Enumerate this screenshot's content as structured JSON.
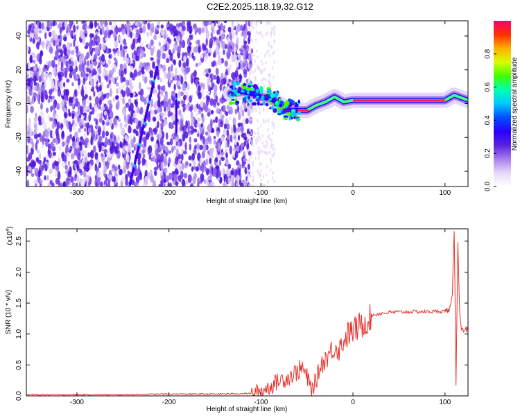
{
  "figure_title": "C2E2.2025.118.19.32.G12",
  "colors": {
    "snr_line": "#e8302a",
    "spectrogram_noise": "#6a2be6",
    "colormap": [
      "#ffffff",
      "#e6d8f8",
      "#a77cf0",
      "#5a1fe0",
      "#2a00ff",
      "#0050ff",
      "#00c8ff",
      "#00ffb0",
      "#40ff00",
      "#d8ff00",
      "#ffb000",
      "#ff3000",
      "#ff0070"
    ]
  },
  "chart_data": [
    {
      "type": "heatmap",
      "xlabel": "Height of straight line (km)",
      "ylabel": "Frequency (Hz)",
      "xlim": [
        -355,
        125
      ],
      "ylim": [
        -49,
        49
      ],
      "xticks": [
        -300,
        -200,
        -100,
        0,
        100
      ],
      "yticks": [
        -40,
        -20,
        0,
        20,
        40
      ],
      "colorbar": {
        "label": "Normalized spectral amplitude",
        "range": [
          0,
          1
        ],
        "ticks": [
          "0.0",
          "0.2",
          "0.4",
          "0.6",
          "0.8"
        ]
      },
      "signal_track": [
        {
          "x": -133,
          "y": 6
        },
        {
          "x": -120,
          "y": 7
        },
        {
          "x": -110,
          "y": 6
        },
        {
          "x": -100,
          "y": 4
        },
        {
          "x": -90,
          "y": 3
        },
        {
          "x": -80,
          "y": 0
        },
        {
          "x": -70,
          "y": -4
        },
        {
          "x": -60,
          "y": -4
        },
        {
          "x": -50,
          "y": -4
        },
        {
          "x": -40,
          "y": -1
        },
        {
          "x": -30,
          "y": 1
        },
        {
          "x": -20,
          "y": 4
        },
        {
          "x": -10,
          "y": 1
        },
        {
          "x": 0,
          "y": 2
        },
        {
          "x": 20,
          "y": 2
        },
        {
          "x": 50,
          "y": 2
        },
        {
          "x": 80,
          "y": 2
        },
        {
          "x": 100,
          "y": 2
        },
        {
          "x": 110,
          "y": 5
        },
        {
          "x": 125,
          "y": 2
        }
      ]
    },
    {
      "type": "line",
      "xlabel": "Height of straight line (km)",
      "ylabel": "SNR (10 * v/v)",
      "scale_note": "(x10",
      "scale_exponent": "4",
      "xlim": [
        -355,
        125
      ],
      "ylim": [
        0,
        2.7
      ],
      "xticks": [
        -300,
        -200,
        -100,
        0,
        100
      ],
      "yticks": [
        "0.0",
        "0.5",
        "1.0",
        "1.5",
        "2.0",
        "2.5"
      ],
      "series": [
        {
          "x": [
            -355,
            -300,
            -250,
            -200,
            -150,
            -110,
            -100,
            -90,
            -80,
            -70,
            -60,
            -55,
            -50,
            -45,
            -40,
            -35,
            -30,
            -25,
            -20,
            -15,
            -10,
            -5,
            0,
            10,
            20,
            30,
            40,
            60,
            80,
            100,
            105,
            108,
            110,
            112,
            114,
            116,
            118,
            120,
            125
          ],
          "y": [
            0.02,
            0.02,
            0.02,
            0.03,
            0.03,
            0.04,
            0.08,
            0.15,
            0.25,
            0.3,
            0.4,
            0.45,
            0.3,
            0.1,
            0.25,
            0.5,
            0.6,
            0.7,
            0.8,
            0.75,
            0.9,
            1.0,
            1.05,
            1.15,
            1.3,
            1.33,
            1.35,
            1.36,
            1.36,
            1.37,
            1.4,
            1.6,
            2.7,
            0.2,
            2.5,
            1.3,
            1.1,
            1.08,
            1.07
          ]
        }
      ]
    }
  ]
}
